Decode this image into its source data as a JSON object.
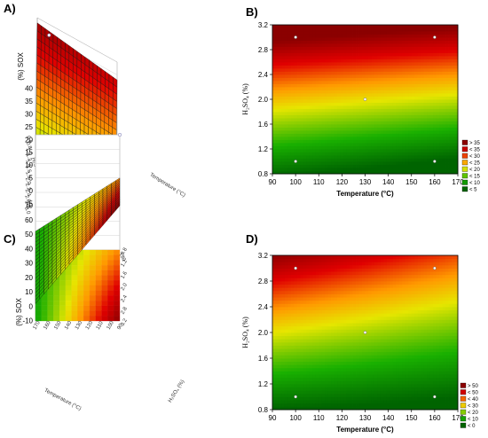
{
  "panels": {
    "a": {
      "label": "A)"
    },
    "b": {
      "label": "B)"
    },
    "c": {
      "label": "C)"
    },
    "d": {
      "label": "D)"
    }
  },
  "colors": {
    "dark_green": "#006400",
    "green": "#19b000",
    "yellow": "#e6e600",
    "orange": "#ff9900",
    "red": "#e00000",
    "dark_red": "#8b0000",
    "point_marker": "#ffffff"
  },
  "chart_data": [
    {
      "id": "A",
      "type": "surface3d",
      "zlabel": "(%) SOX",
      "xlabel": "Temperature (°C)",
      "ylabel": "H₂SO₄ (%)",
      "zlim": [
        -5,
        40
      ],
      "z_ticks": [
        "40",
        "35",
        "30",
        "25",
        "20",
        "15",
        "10",
        "5",
        "0",
        "-5"
      ],
      "x_ticks": [
        "80",
        "90",
        "100",
        "110",
        "120",
        "130",
        "140",
        "150",
        "160",
        "170",
        "180"
      ],
      "y_ticks": [
        "0.6",
        "0.8",
        "1.0",
        "1.2",
        "1.4",
        "1.6",
        "1.8",
        "2.0",
        "2.2",
        "2.4",
        "2.6",
        "2.8",
        "3.0"
      ],
      "corners_z": {
        "t100_h1": 3,
        "t160_h1": 5,
        "t100_h3": 38,
        "t160_h3": 33
      },
      "design_points": [
        {
          "x": 100,
          "y": 3.0,
          "z": 38
        },
        {
          "x": 160,
          "y": 1.0,
          "z": 5
        }
      ]
    },
    {
      "id": "B",
      "type": "contour",
      "xlabel": "Temperature (°C)",
      "ylabel": "H₂SO₄ (%)",
      "xlim": [
        90,
        170
      ],
      "ylim": [
        0.8,
        3.2
      ],
      "x_ticks": [
        "90",
        "100",
        "110",
        "120",
        "130",
        "140",
        "150",
        "160",
        "170"
      ],
      "y_ticks": [
        "0.8",
        "1.2",
        "1.6",
        "2.0",
        "2.4",
        "2.8",
        "3.2"
      ],
      "legend": [
        "> 35",
        "< 35",
        "< 30",
        "< 25",
        "< 20",
        "< 15",
        "< 10",
        "< 5"
      ],
      "legend_thresholds": [
        35,
        30,
        25,
        20,
        15,
        10,
        5
      ],
      "design_points": [
        {
          "x": 100,
          "y": 3.0
        },
        {
          "x": 160,
          "y": 3.0
        },
        {
          "x": 130,
          "y": 2.0
        },
        {
          "x": 100,
          "y": 1.0
        },
        {
          "x": 160,
          "y": 1.0
        }
      ]
    },
    {
      "id": "C",
      "type": "surface3d",
      "zlabel": "(%) SOX",
      "xlabel": "Temperature (°C)",
      "ylabel": "H₂SO₄ (%)",
      "zlim": [
        -10,
        70
      ],
      "z_ticks": [
        "70",
        "60",
        "50",
        "40",
        "30",
        "20",
        "10",
        "0",
        "-10"
      ],
      "x_ticks": [
        "170",
        "160",
        "150",
        "140",
        "130",
        "120",
        "110",
        "100",
        "90"
      ],
      "y_ticks": [
        "0.8",
        "1.2",
        "1.6",
        "2.0",
        "2.4",
        "2.8",
        "3.2"
      ],
      "corners_z": {
        "t100_h1": 2,
        "t160_h1": 3,
        "t100_h3": 70,
        "t160_h3": 40
      },
      "design_points": [
        {
          "x": 100,
          "y": 3.0,
          "z": 70
        }
      ]
    },
    {
      "id": "D",
      "type": "contour",
      "xlabel": "Temperature (°C)",
      "ylabel": "H₂SO₄ (%)",
      "xlim": [
        90,
        170
      ],
      "ylim": [
        0.8,
        3.2
      ],
      "x_ticks": [
        "90",
        "100",
        "110",
        "120",
        "130",
        "140",
        "150",
        "160",
        "170"
      ],
      "y_ticks": [
        "0.8",
        "1.2",
        "1.6",
        "2.0",
        "2.4",
        "2.8",
        "3.2"
      ],
      "legend": [
        "> 50",
        "< 50",
        "< 40",
        "< 30",
        "< 20",
        "< 10",
        "< 0"
      ],
      "legend_thresholds": [
        50,
        40,
        30,
        20,
        10,
        0
      ],
      "design_points": [
        {
          "x": 100,
          "y": 3.0
        },
        {
          "x": 160,
          "y": 3.0
        },
        {
          "x": 130,
          "y": 2.0
        },
        {
          "x": 100,
          "y": 1.0
        },
        {
          "x": 160,
          "y": 1.0
        }
      ]
    }
  ]
}
